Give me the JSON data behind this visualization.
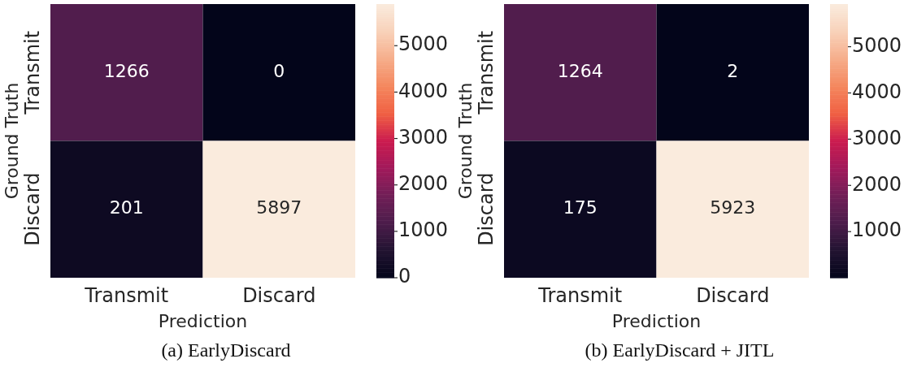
{
  "chart_data": [
    {
      "type": "heatmap",
      "title": "(a) EarlyDiscard",
      "xlabel": "Prediction",
      "ylabel": "Ground Truth",
      "categories": [
        "Transmit",
        "Discard"
      ],
      "y_categories": [
        "Transmit",
        "Discard"
      ],
      "cells": [
        [
          1266,
          0
        ],
        [
          201,
          5897
        ]
      ],
      "clim": [
        0,
        5897
      ],
      "cticks": [
        0,
        1000,
        2000,
        3000,
        4000,
        5000
      ],
      "data_labels": true
    },
    {
      "type": "heatmap",
      "title": "(b) EarlyDiscard + JITL",
      "xlabel": "Prediction",
      "ylabel": "Ground Truth",
      "categories": [
        "Transmit",
        "Discard"
      ],
      "y_categories": [
        "Transmit",
        "Discard"
      ],
      "cells": [
        [
          1264,
          2
        ],
        [
          175,
          5923
        ]
      ],
      "clim": [
        2,
        5923
      ],
      "cticks": [
        1000,
        2000,
        3000,
        4000,
        5000
      ],
      "data_labels": true
    }
  ]
}
